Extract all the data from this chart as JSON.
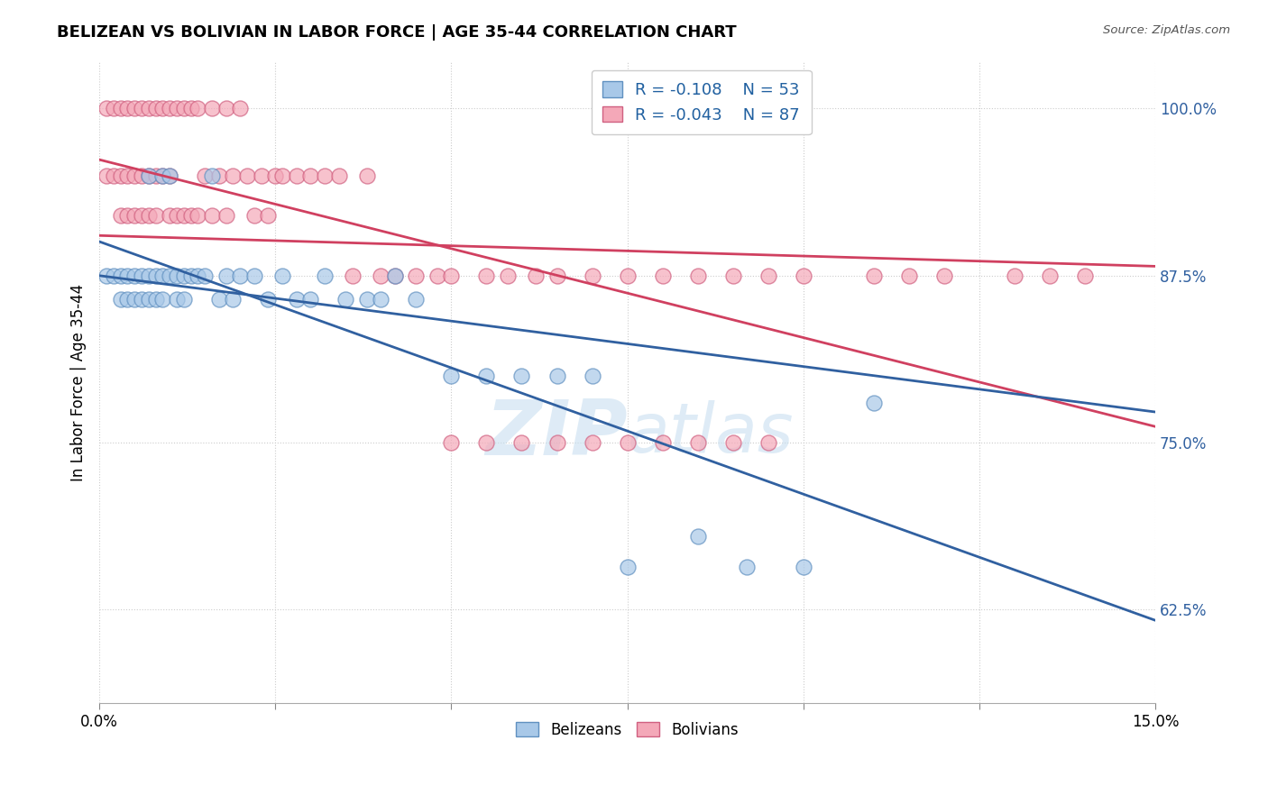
{
  "title": "BELIZEAN VS BOLIVIAN IN LABOR FORCE | AGE 35-44 CORRELATION CHART",
  "source": "Source: ZipAtlas.com",
  "ylabel": "In Labor Force | Age 35-44",
  "xlim": [
    0.0,
    0.15
  ],
  "ylim": [
    0.555,
    1.035
  ],
  "yticks": [
    0.625,
    0.75,
    0.875,
    1.0
  ],
  "ytick_labels": [
    "62.5%",
    "75.0%",
    "87.5%",
    "100.0%"
  ],
  "xticks": [
    0.0,
    0.025,
    0.05,
    0.075,
    0.1,
    0.125,
    0.15
  ],
  "xtick_labels": [
    "0.0%",
    "",
    "",
    "",
    "",
    "",
    "15.0%"
  ],
  "belizean_R": -0.108,
  "belizean_N": 53,
  "bolivian_R": -0.043,
  "bolivian_N": 87,
  "blue_color": "#a8c8e8",
  "pink_color": "#f4a8b8",
  "blue_edge_color": "#6090c0",
  "pink_edge_color": "#d06080",
  "blue_line_color": "#3060a0",
  "pink_line_color": "#d04060",
  "watermark_color": "#c8dff0",
  "belizean_x": [
    0.001,
    0.002,
    0.003,
    0.003,
    0.004,
    0.004,
    0.005,
    0.005,
    0.006,
    0.006,
    0.007,
    0.007,
    0.007,
    0.008,
    0.008,
    0.009,
    0.009,
    0.009,
    0.01,
    0.01,
    0.011,
    0.011,
    0.012,
    0.012,
    0.013,
    0.014,
    0.015,
    0.016,
    0.017,
    0.018,
    0.019,
    0.02,
    0.022,
    0.024,
    0.026,
    0.028,
    0.03,
    0.032,
    0.035,
    0.038,
    0.04,
    0.042,
    0.045,
    0.05,
    0.055,
    0.06,
    0.065,
    0.07,
    0.075,
    0.085,
    0.092,
    0.1,
    0.11
  ],
  "belizean_y": [
    0.875,
    0.875,
    0.875,
    0.857,
    0.875,
    0.857,
    0.875,
    0.857,
    0.875,
    0.857,
    0.95,
    0.875,
    0.857,
    0.875,
    0.857,
    0.95,
    0.875,
    0.857,
    0.95,
    0.875,
    0.875,
    0.857,
    0.875,
    0.857,
    0.875,
    0.875,
    0.875,
    0.95,
    0.857,
    0.875,
    0.857,
    0.875,
    0.875,
    0.857,
    0.875,
    0.857,
    0.857,
    0.875,
    0.857,
    0.857,
    0.857,
    0.875,
    0.857,
    0.8,
    0.8,
    0.8,
    0.8,
    0.8,
    0.657,
    0.68,
    0.657,
    0.657,
    0.78
  ],
  "bolivian_x": [
    0.001,
    0.001,
    0.002,
    0.002,
    0.003,
    0.003,
    0.003,
    0.004,
    0.004,
    0.004,
    0.005,
    0.005,
    0.005,
    0.006,
    0.006,
    0.006,
    0.007,
    0.007,
    0.007,
    0.008,
    0.008,
    0.008,
    0.009,
    0.009,
    0.01,
    0.01,
    0.01,
    0.011,
    0.011,
    0.012,
    0.012,
    0.013,
    0.013,
    0.014,
    0.014,
    0.015,
    0.016,
    0.016,
    0.017,
    0.018,
    0.018,
    0.019,
    0.02,
    0.021,
    0.022,
    0.023,
    0.024,
    0.025,
    0.026,
    0.028,
    0.03,
    0.032,
    0.034,
    0.036,
    0.038,
    0.04,
    0.042,
    0.045,
    0.048,
    0.05,
    0.055,
    0.058,
    0.062,
    0.065,
    0.07,
    0.075,
    0.08,
    0.085,
    0.09,
    0.095,
    0.1,
    0.11,
    0.115,
    0.12,
    0.13,
    0.135,
    0.14,
    0.05,
    0.055,
    0.06,
    0.065,
    0.07,
    0.075,
    0.08,
    0.085,
    0.09,
    0.095
  ],
  "bolivian_y": [
    1.0,
    0.95,
    1.0,
    0.95,
    1.0,
    0.95,
    0.92,
    1.0,
    0.95,
    0.92,
    1.0,
    0.95,
    0.92,
    1.0,
    0.95,
    0.92,
    1.0,
    0.95,
    0.92,
    1.0,
    0.95,
    0.92,
    1.0,
    0.95,
    1.0,
    0.95,
    0.92,
    1.0,
    0.92,
    1.0,
    0.92,
    1.0,
    0.92,
    1.0,
    0.92,
    0.95,
    1.0,
    0.92,
    0.95,
    1.0,
    0.92,
    0.95,
    1.0,
    0.95,
    0.92,
    0.95,
    0.92,
    0.95,
    0.95,
    0.95,
    0.95,
    0.95,
    0.95,
    0.875,
    0.95,
    0.875,
    0.875,
    0.875,
    0.875,
    0.875,
    0.875,
    0.875,
    0.875,
    0.875,
    0.875,
    0.875,
    0.875,
    0.875,
    0.875,
    0.875,
    0.875,
    0.875,
    0.875,
    0.875,
    0.875,
    0.875,
    0.875,
    0.75,
    0.75,
    0.75,
    0.75,
    0.75,
    0.75,
    0.75,
    0.75,
    0.75,
    0.75
  ]
}
